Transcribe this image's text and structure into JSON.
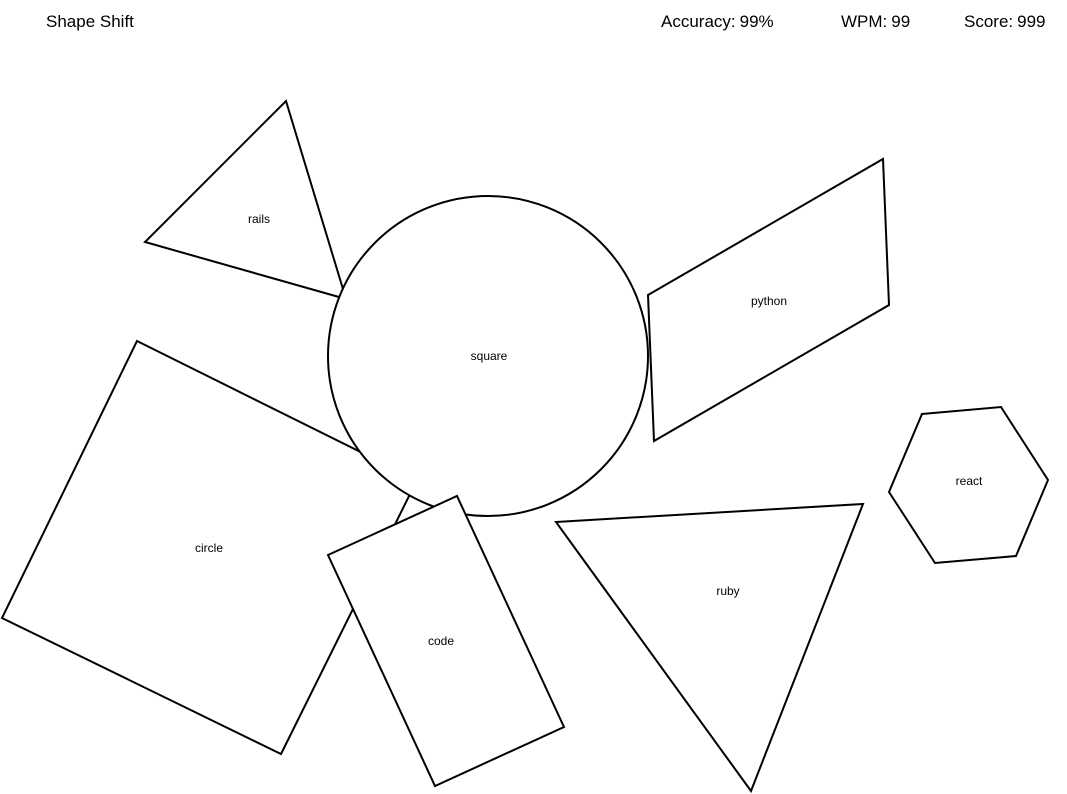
{
  "header": {
    "title": "Shape Shift",
    "accuracy": {
      "label": "Accuracy:",
      "value": "99%"
    },
    "wpm": {
      "label": "WPM:",
      "value": "99"
    },
    "score": {
      "label": "Score:",
      "value": "999"
    }
  },
  "shapes": [
    {
      "id": "circle",
      "word": "circle",
      "kind": "square"
    },
    {
      "id": "square",
      "word": "square",
      "kind": "circle"
    },
    {
      "id": "code",
      "word": "code",
      "kind": "rectangle"
    },
    {
      "id": "rails",
      "word": "rails",
      "kind": "triangle"
    },
    {
      "id": "python",
      "word": "python",
      "kind": "parallelogram"
    },
    {
      "id": "react",
      "word": "react",
      "kind": "hexagon"
    },
    {
      "id": "ruby",
      "word": "ruby",
      "kind": "triangle"
    }
  ]
}
